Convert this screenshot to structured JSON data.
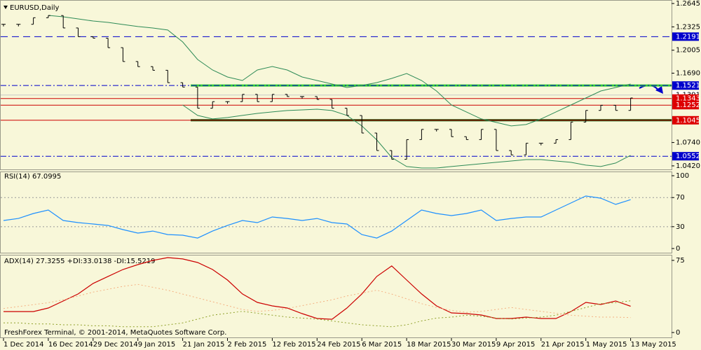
{
  "chart_data": [
    {
      "type": "price",
      "title": "EURUSD,Daily",
      "categories": [
        "1 Dec 2014",
        null,
        null,
        "16 Dec 2014",
        null,
        null,
        "29 Dec 2014",
        null,
        null,
        "9 Jan 2015",
        null,
        null,
        "21 Jan 2015",
        null,
        null,
        "2 Feb 2015",
        null,
        null,
        "12 Feb 2015",
        null,
        null,
        "24 Feb 2015",
        null,
        null,
        "6 Mar 2015",
        null,
        null,
        "18 Mar 2015",
        null,
        null,
        "30 Mar 2015",
        null,
        null,
        "9 Apr 2015",
        null,
        null,
        "21 Apr 2015",
        null,
        null,
        "1 May 2015",
        null,
        null,
        "13 May 2015"
      ],
      "values": [
        1.236,
        1.236,
        1.245,
        1.248,
        1.231,
        1.219,
        1.217,
        1.204,
        1.185,
        1.178,
        1.173,
        1.156,
        1.15,
        1.121,
        1.13,
        1.13,
        1.14,
        1.13,
        1.14,
        1.137,
        1.137,
        1.133,
        1.121,
        1.111,
        1.087,
        1.063,
        1.051,
        1.078,
        1.092,
        1.092,
        1.082,
        1.078,
        1.092,
        1.063,
        1.057,
        1.073,
        1.073,
        1.078,
        1.102,
        1.118,
        1.125,
        1.118,
        1.135
      ],
      "color": "#000000",
      "bands": [
        {
          "color": "#2e8b57",
          "values": [
            null,
            null,
            null,
            1.2482,
            1.2463,
            1.2434,
            1.2405,
            1.2386,
            1.2357,
            1.2329,
            1.2309,
            1.2281,
            1.2118,
            1.1878,
            1.1734,
            1.1638,
            1.159,
            1.1734,
            1.1782,
            1.1734,
            1.1638,
            1.159,
            1.1542,
            1.1494,
            1.1523,
            1.1561,
            1.1619,
            1.1686,
            1.159,
            1.1446,
            1.1254,
            1.1159,
            1.1063,
            1.1015,
            1.0967,
            1.0986,
            1.1063,
            1.1159,
            1.1254,
            1.135,
            1.1446,
            1.1494,
            1.1542
          ]
        },
        {
          "color": "#2e8b57",
          "values": [
            null,
            null,
            null,
            null,
            null,
            null,
            null,
            null,
            null,
            null,
            null,
            null,
            1.1254,
            1.1111,
            1.1063,
            1.1082,
            1.1111,
            1.1139,
            1.1159,
            1.1178,
            1.1187,
            1.1197,
            1.1178,
            1.1111,
            1.0967,
            1.0775,
            1.0535,
            1.0411,
            1.0391,
            1.0391,
            1.0411,
            1.043,
            1.0449,
            1.0468,
            1.0487,
            1.0506,
            1.0506,
            1.0487,
            1.0468,
            1.043,
            1.0411,
            1.0459,
            1.0564
          ]
        }
      ],
      "levels": [
        {
          "value": 1.2191,
          "color": "#0000cc",
          "style": "dashed",
          "label_bg": "#0000cc",
          "label_color": "#ffffff"
        },
        {
          "value": 1.1521,
          "color": "#0000cc",
          "style": "dashdot",
          "label_bg": "#0000cc",
          "label_color": "#ffffff",
          "highlight": "#33cc33"
        },
        {
          "value": 1.1391,
          "color": "#c8c8c8",
          "style": "solid",
          "label_bg": "#ffffff",
          "label_color": "#000000"
        },
        {
          "value": 1.1343,
          "color": "#cc0000",
          "style": "solid",
          "label_bg": "#dd0000",
          "label_color": "#ffffff"
        },
        {
          "value": 1.1252,
          "color": "#cc0000",
          "style": "solid",
          "label_bg": "#dd0000",
          "label_color": "#ffffff"
        },
        {
          "value": 1.1045,
          "color": "#cc0000",
          "style": "solid",
          "label_bg": "#dd0000",
          "label_color": "#ffffff",
          "highlight": "#004d00"
        },
        {
          "value": 1.0552,
          "color": "#0000cc",
          "style": "dashdot",
          "label_bg": "#0000cc",
          "label_color": "#ffffff"
        }
      ],
      "ylim": [
        1.2693,
        1.0362
      ],
      "yticks": [
        1.2645,
        1.2325,
        1.2005,
        {
          "value": 1.169,
          "label": "1.1690"
        },
        {
          "value": 1.074,
          "label": "1.0740"
        },
        {
          "value": 1.042,
          "label": "1.0420"
        }
      ]
    },
    {
      "type": "line",
      "title": "RSI(14) 67.0995",
      "series": [
        {
          "color": "#1e90ff",
          "style": "solid",
          "values": [
            38.5,
            41.3,
            48.1,
            52.9,
            38.5,
            35.6,
            33.7,
            31.7,
            26.0,
            21.2,
            24.0,
            19.2,
            18.3,
            14.4,
            24.0,
            31.7,
            38.5,
            35.6,
            43.3,
            41.3,
            38.5,
            41.3,
            35.6,
            33.7,
            19.2,
            14.4,
            24.0,
            38.5,
            52.9,
            48.1,
            45.2,
            48.1,
            52.9,
            38.5,
            41.3,
            43.3,
            43.3,
            52.9,
            62.5,
            72.1,
            69.2,
            60.6,
            67.1
          ]
        }
      ],
      "levels": [
        70,
        30
      ],
      "ylim": [
        105.8,
        -6.7
      ],
      "yticks": [
        100,
        70,
        30,
        0
      ]
    },
    {
      "type": "line",
      "title": "ADX(14) 27.3255 +DI:33.0138 -DI:15.5219",
      "series": [
        {
          "color": "#cc0000",
          "style": "solid",
          "values": [
            21.8,
            21.8,
            21.8,
            25.5,
            32.8,
            40.1,
            51.0,
            58.3,
            65.5,
            70.6,
            75.0,
            77.9,
            76.5,
            72.8,
            65.5,
            54.6,
            40.1,
            31.3,
            27.7,
            25.5,
            19.7,
            14.6,
            13.8,
            25.5,
            40.1,
            58.3,
            69.2,
            54.6,
            40.1,
            27.7,
            20.4,
            19.7,
            18.2,
            14.6,
            14.6,
            16.0,
            14.6,
            14.6,
            21.8,
            31.3,
            29.1,
            32.8,
            27.3
          ]
        },
        {
          "color": "#8fa02a",
          "style": "dotted",
          "values": [
            10,
            10,
            9,
            9,
            8,
            8,
            7,
            7,
            6,
            6,
            6,
            8,
            10,
            14,
            18,
            20,
            22,
            20,
            18,
            16,
            15,
            14,
            12,
            10,
            8,
            7,
            6,
            8,
            12,
            15,
            16,
            18,
            17,
            15,
            14,
            15,
            16,
            18,
            22,
            26,
            30,
            31,
            33
          ]
        },
        {
          "color": "#f4b183",
          "style": "dotted",
          "values": [
            25,
            27,
            29,
            31,
            34,
            38,
            42,
            45,
            48,
            50,
            47,
            44,
            40,
            36,
            32,
            28,
            24,
            22,
            23,
            25,
            28,
            31,
            34,
            38,
            41,
            44,
            40,
            35,
            30,
            26,
            23,
            21,
            22,
            24,
            26,
            24,
            22,
            20,
            18,
            17,
            16,
            16,
            15.5
          ]
        }
      ],
      "ylim": [
        80.8,
        -5.8
      ],
      "yticks": [
        75,
        0
      ],
      "footer": "FreshForex Terminal, © 2001-2014, MetaQuotes Software Corp."
    }
  ]
}
